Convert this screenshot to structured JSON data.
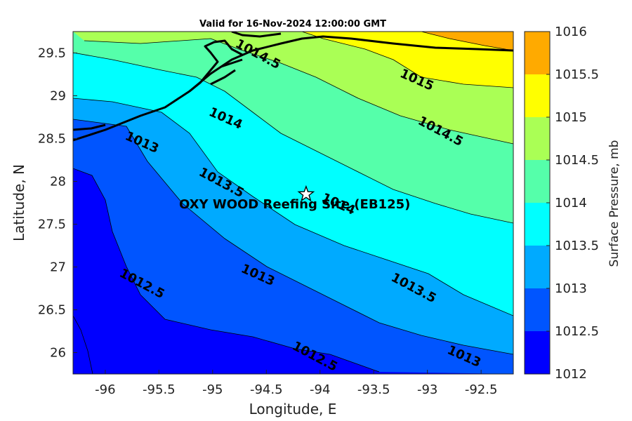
{
  "title": "Valid for 16-Nov-2024 12:00:00 GMT",
  "xlabel": "Longitude, E",
  "ylabel": "Latitude, N",
  "colorbar_label": "Surface Pressure, mb",
  "site_label": "OXY WOOD Reefing Site (EB125)",
  "chart_data": {
    "type": "contour-map",
    "title": "Valid for 16-Nov-2024 12:00:00 GMT",
    "xlabel": "Longitude, E",
    "ylabel": "Latitude, N",
    "xlim": [
      -96.3,
      -92.2
    ],
    "ylim": [
      25.75,
      29.75
    ],
    "x_ticks": [
      -96,
      -95.5,
      -95,
      -94.5,
      -94,
      -93.5,
      -93,
      -92.5
    ],
    "y_ticks": [
      26,
      26.5,
      27,
      27.5,
      28,
      28.5,
      29,
      29.5
    ],
    "x_tick_labels": [
      "-96",
      "-95.5",
      "-95",
      "-94.5",
      "-94",
      "-93.5",
      "-93",
      "-92.5"
    ],
    "y_tick_labels": [
      "26",
      "26.5",
      "27",
      "27.5",
      "28",
      "28.5",
      "29",
      "29.5"
    ],
    "colorbar": {
      "label": "Surface Pressure, mb",
      "levels": [
        1012,
        1012.5,
        1013,
        1013.5,
        1014,
        1014.5,
        1015,
        1015.5,
        1016
      ],
      "tick_labels": [
        "1012",
        "1012.5",
        "1013",
        "1013.5",
        "1014",
        "1014.5",
        "1015",
        "1015.5",
        "1016"
      ],
      "colors": [
        "#0000ff",
        "#0055ff",
        "#00aaff",
        "#00ffff",
        "#55ffaa",
        "#aaff55",
        "#ffff00",
        "#ffaa00",
        "#ff5500"
      ]
    },
    "contour_labels": [
      {
        "text": "1014.5",
        "lon": -94.58,
        "lat": 29.48
      },
      {
        "text": "1015",
        "lon": -93.1,
        "lat": 29.18
      },
      {
        "text": "1014",
        "lon": -94.88,
        "lat": 28.73
      },
      {
        "text": "1014.5",
        "lon": -92.88,
        "lat": 28.58
      },
      {
        "text": "1013",
        "lon": -95.66,
        "lat": 28.45
      },
      {
        "text": "1013.5",
        "lon": -94.92,
        "lat": 27.98
      },
      {
        "text": "1014",
        "lon": -93.83,
        "lat": 27.73
      },
      {
        "text": "1013",
        "lon": -94.58,
        "lat": 26.9
      },
      {
        "text": "1013.5",
        "lon": -93.13,
        "lat": 26.75
      },
      {
        "text": "1012.5",
        "lon": -95.66,
        "lat": 26.8
      },
      {
        "text": "1012.5",
        "lon": -94.05,
        "lat": 25.95
      },
      {
        "text": "1013",
        "lon": -92.66,
        "lat": 25.95
      }
    ],
    "site": {
      "name": "OXY WOOD Reefing Site (EB125)",
      "lon": -94.13,
      "lat": 27.85,
      "marker": "star"
    },
    "grid": false,
    "colorbar_placement": "right"
  }
}
